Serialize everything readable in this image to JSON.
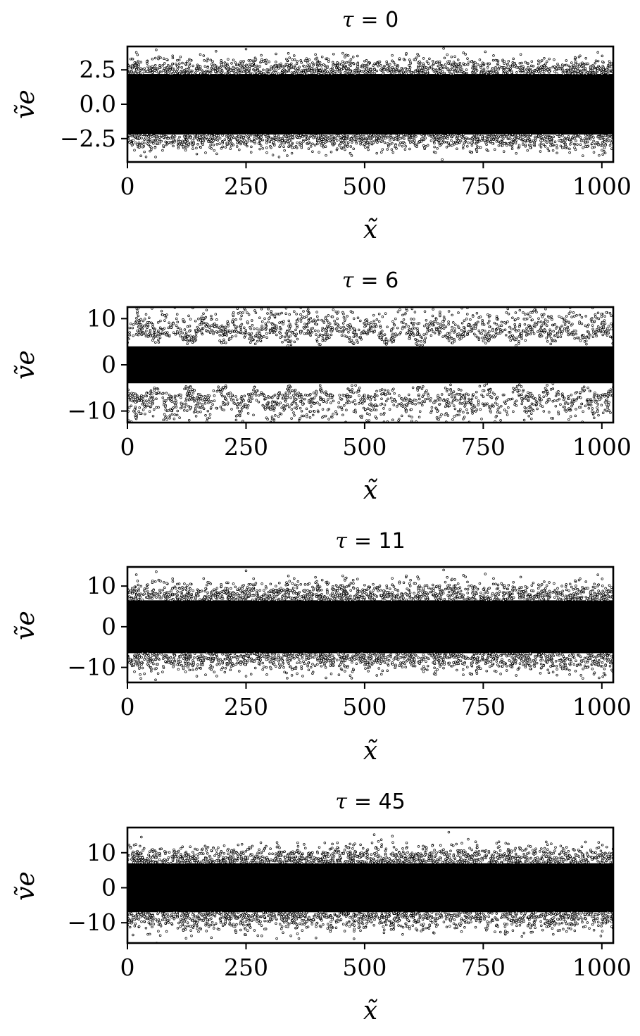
{
  "chart_data": [
    {
      "type": "scatter",
      "title": "τ = 0",
      "title_symbol": "τ",
      "title_value": "= 0",
      "xlabel": "x̃",
      "ylabel": "ṽe",
      "xlim": [
        0,
        1024
      ],
      "ylim": [
        -4.2,
        4.2
      ],
      "xticks": [
        0,
        250,
        500,
        750,
        1000
      ],
      "xtick_labels": [
        "0",
        "250",
        "500",
        "750",
        "1000"
      ],
      "yticks": [
        2.5,
        0.0,
        -2.5
      ],
      "ytick_labels": [
        "2.5",
        "0.0",
        "−2.5"
      ],
      "marker_color": "#000000",
      "distribution": {
        "x_range": [
          0,
          1024
        ],
        "core_halfwidth": 2.2,
        "sigma": 1.0,
        "max_abs": 4.1
      },
      "grid": false,
      "legend": "none"
    },
    {
      "type": "scatter",
      "title": "τ = 6",
      "title_symbol": "τ",
      "title_value": "= 6",
      "xlabel": "x̃",
      "ylabel": "ṽe",
      "xlim": [
        0,
        1024
      ],
      "ylim": [
        -12.5,
        12.5
      ],
      "xticks": [
        0,
        250,
        500,
        750,
        1000
      ],
      "xtick_labels": [
        "0",
        "250",
        "500",
        "750",
        "1000"
      ],
      "yticks": [
        10,
        0,
        -10
      ],
      "ytick_labels": [
        "10",
        "0",
        "−10"
      ],
      "marker_color": "#000000",
      "distribution": {
        "x_range": [
          0,
          1024
        ],
        "core_halfwidth": 4.0,
        "sigma": 5.5,
        "max_abs": 12.4,
        "vortex_structure": true
      },
      "grid": false,
      "legend": "none"
    },
    {
      "type": "scatter",
      "title": "τ = 11",
      "title_symbol": "τ",
      "title_value": "= 11",
      "xlabel": "x̃",
      "ylabel": "ṽe",
      "xlim": [
        0,
        1024
      ],
      "ylim": [
        -13.7,
        14.7
      ],
      "xticks": [
        0,
        250,
        500,
        750,
        1000
      ],
      "xtick_labels": [
        "0",
        "250",
        "500",
        "750",
        "1000"
      ],
      "yticks": [
        10,
        0,
        -10
      ],
      "ytick_labels": [
        "10",
        "0",
        "−10"
      ],
      "marker_color": "#000000",
      "distribution": {
        "x_range": [
          0,
          1024
        ],
        "core_halfwidth": 6.5,
        "sigma": 4.0,
        "max_abs": 14.0
      },
      "grid": false,
      "legend": "none"
    },
    {
      "type": "scatter",
      "title": "τ = 45",
      "title_symbol": "τ",
      "title_value": "= 45",
      "xlabel": "x̃",
      "ylabel": "ṽe",
      "xlim": [
        0,
        1024
      ],
      "ylim": [
        -15.8,
        17.2
      ],
      "xticks": [
        0,
        250,
        500,
        750,
        1000
      ],
      "xtick_labels": [
        "0",
        "250",
        "500",
        "750",
        "1000"
      ],
      "yticks": [
        10,
        0,
        -10
      ],
      "ytick_labels": [
        "10",
        "0",
        "−10"
      ],
      "marker_color": "#000000",
      "distribution": {
        "x_range": [
          0,
          1024
        ],
        "core_halfwidth": 7.0,
        "sigma": 4.5,
        "max_abs": 17.0
      },
      "grid": false,
      "legend": "none"
    }
  ]
}
